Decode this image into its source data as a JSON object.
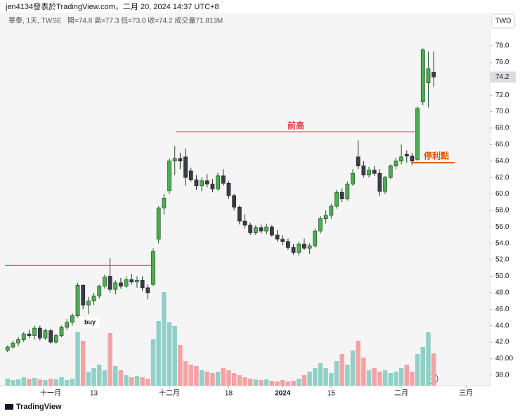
{
  "chart_data": {
    "type": "candlestick",
    "title": "jen4134發表於TradingView.com，二月 20, 2024 14:37 UTC+8",
    "symbol": "華泰, 1天, TWSE",
    "ohlc_legend": "開=74.8 高=77.3 低=73.0 收=74.2 成交量71.813M",
    "currency": "TWD",
    "footer": "TradingView",
    "up_color": "#4caf50",
    "down_color": "#3b3d45",
    "volume_up_color": "#8fd0c8",
    "volume_down_color": "#f2a3a3",
    "open": [
      41.0,
      41.4,
      41.9,
      42.3,
      43.0,
      42.8,
      43.7,
      42.5,
      43.4,
      42.0,
      42.8,
      43.8,
      44.4,
      45.2,
      48.9,
      46.5,
      47.0,
      47.6,
      48.8,
      50.0,
      48.4,
      49.2,
      48.8,
      49.6,
      49.3,
      49.5,
      48.6,
      49.0,
      54.5,
      58.3,
      60.4,
      64.0,
      64.3,
      64.5,
      62.8,
      61.7,
      61.0,
      61.6,
      61.2,
      60.6,
      62.2,
      61.3,
      59.8,
      58.4,
      56.7,
      56.2,
      55.3,
      55.9,
      55.5,
      56.0,
      55.0,
      54.5,
      54.2,
      53.5,
      52.9,
      53.9,
      53.4,
      53.7,
      55.5,
      57.0,
      57.4,
      58.5,
      60.2,
      59.4,
      61.2,
      64.5,
      63.4,
      62.3,
      62.9,
      62.5,
      60.3,
      62.0,
      63.4,
      64.0,
      64.8,
      64.6,
      64.2,
      71.2,
      73.5,
      74.8
    ],
    "high": [
      41.6,
      42.2,
      42.6,
      43.2,
      43.5,
      44.0,
      44.0,
      43.6,
      43.6,
      43.0,
      44.0,
      44.8,
      45.5,
      49.2,
      49.0,
      47.5,
      48.0,
      49.0,
      50.2,
      52.2,
      49.5,
      49.8,
      50.0,
      50.3,
      50.0,
      50.0,
      49.0,
      53.4,
      58.5,
      60.0,
      64.3,
      65.8,
      65.0,
      65.5,
      63.2,
      62.3,
      62.0,
      62.4,
      61.8,
      62.6,
      63.0,
      61.6,
      60.0,
      58.6,
      57.5,
      56.5,
      56.2,
      56.3,
      56.4,
      56.2,
      55.6,
      55.0,
      54.6,
      53.9,
      54.2,
      54.6,
      54.0,
      55.8,
      57.3,
      58.0,
      58.8,
      60.5,
      60.7,
      61.5,
      63.0,
      66.5,
      64.0,
      63.3,
      63.4,
      63.0,
      62.2,
      63.6,
      64.4,
      66.0,
      65.3,
      65.0,
      70.6,
      77.7,
      77.3,
      77.3
    ],
    "low": [
      40.8,
      41.2,
      41.5,
      42.0,
      42.5,
      42.3,
      42.2,
      42.3,
      41.8,
      41.8,
      42.6,
      43.5,
      44.0,
      45.0,
      46.0,
      45.4,
      46.5,
      47.3,
      48.5,
      48.0,
      47.8,
      48.5,
      48.6,
      49.0,
      48.6,
      48.2,
      47.2,
      48.8,
      54.0,
      57.5,
      60.0,
      62.3,
      63.0,
      61.0,
      61.5,
      60.5,
      60.3,
      60.8,
      60.2,
      60.4,
      61.0,
      59.4,
      58.0,
      56.3,
      55.8,
      55.0,
      55.0,
      55.2,
      55.1,
      54.8,
      54.2,
      53.8,
      53.2,
      52.6,
      52.5,
      53.2,
      52.7,
      53.5,
      55.2,
      56.4,
      57.0,
      58.2,
      59.0,
      59.2,
      61.0,
      63.0,
      62.0,
      62.0,
      62.2,
      59.8,
      60.0,
      61.8,
      63.0,
      63.6,
      63.8,
      63.5,
      64.0,
      70.8,
      70.5,
      73.0
    ],
    "close": [
      41.4,
      41.9,
      42.3,
      43.0,
      42.8,
      43.7,
      42.5,
      43.4,
      42.0,
      42.8,
      43.8,
      44.4,
      45.2,
      48.9,
      46.5,
      47.0,
      47.6,
      48.8,
      49.9,
      48.4,
      49.2,
      48.8,
      49.6,
      49.3,
      49.5,
      48.6,
      48.0,
      53.0,
      58.3,
      59.5,
      64.0,
      64.3,
      64.0,
      62.0,
      61.7,
      61.0,
      61.6,
      61.2,
      60.6,
      62.2,
      61.3,
      59.8,
      58.4,
      56.7,
      56.2,
      55.3,
      55.9,
      55.5,
      56.0,
      55.0,
      54.5,
      54.2,
      53.5,
      52.9,
      53.9,
      53.4,
      53.7,
      55.5,
      57.0,
      57.4,
      58.5,
      60.2,
      59.4,
      61.2,
      62.5,
      63.4,
      62.3,
      62.9,
      62.5,
      60.3,
      62.0,
      63.4,
      64.0,
      64.5,
      64.6,
      64.0,
      70.4,
      77.5,
      75.2,
      74.2
    ],
    "volume": [
      15.6,
      12.5,
      14.0,
      18.7,
      15.6,
      17.2,
      14.0,
      12.5,
      15.6,
      14.0,
      18.7,
      12.5,
      15.6,
      118.6,
      99.8,
      31.2,
      39.0,
      46.8,
      34.3,
      117.0,
      43.7,
      34.3,
      23.4,
      18.7,
      21.8,
      18.7,
      15.6,
      103.0,
      143.5,
      207.5,
      140.4,
      132.6,
      90.5,
      54.6,
      46.8,
      43.7,
      34.3,
      31.2,
      28.1,
      31.2,
      39.0,
      34.3,
      28.1,
      23.4,
      18.7,
      15.6,
      14.0,
      12.5,
      14.0,
      10.9,
      9.4,
      12.5,
      9.4,
      10.9,
      15.6,
      23.4,
      31.2,
      39.0,
      49.9,
      39.0,
      28.1,
      54.6,
      70.2,
      46.8,
      78.0,
      99.8,
      62.4,
      34.3,
      39.0,
      31.2,
      34.3,
      28.1,
      31.2,
      39.0,
      46.8,
      31.2,
      70.2,
      85.8,
      118.6,
      71.8
    ],
    "xticks": [
      {
        "value": 8,
        "label": "十一月"
      },
      {
        "value": 16,
        "label": "13"
      },
      {
        "value": 30,
        "label": "十二月"
      },
      {
        "value": 41,
        "label": "18"
      },
      {
        "value": 51,
        "label": "2024"
      },
      {
        "value": 60,
        "label": "15"
      },
      {
        "value": 73,
        "label": "二月"
      },
      {
        "value": 85,
        "label": "三月"
      }
    ],
    "xlim": [
      -1.4,
      89.4
    ],
    "ylim": [
      36.7,
      81.85
    ],
    "yticks": [
      {
        "value": 38,
        "label": "38.0"
      },
      {
        "value": 40,
        "label": "40.00"
      },
      {
        "value": 42,
        "label": "42.0"
      },
      {
        "value": 44,
        "label": "44.0"
      },
      {
        "value": 46,
        "label": "46.0"
      },
      {
        "value": 48,
        "label": "48.0"
      },
      {
        "value": 50,
        "label": "50.0"
      },
      {
        "value": 52,
        "label": "52.0"
      },
      {
        "value": 54,
        "label": "54.0"
      },
      {
        "value": 56,
        "label": "56.0"
      },
      {
        "value": 58,
        "label": "58.0"
      },
      {
        "value": 60,
        "label": "60.0"
      },
      {
        "value": 62,
        "label": "62.0"
      },
      {
        "value": 64,
        "label": "64.0"
      },
      {
        "value": 66,
        "label": "66.0"
      },
      {
        "value": 68,
        "label": "68.0"
      },
      {
        "value": 70,
        "label": "70.0"
      },
      {
        "value": 72,
        "label": "72.0"
      },
      {
        "value": 74,
        "label": "74.0"
      },
      {
        "value": 76,
        "label": "76.0"
      },
      {
        "value": 78,
        "label": "78.0"
      }
    ],
    "annotations": [
      {
        "text": "前高",
        "level": 67.55,
        "color": "#f23645"
      },
      {
        "text": "停利點",
        "level": 63.8,
        "color": "#e65100"
      },
      {
        "level": 51.3,
        "color": "#f23645"
      },
      {
        "text": "buy"
      }
    ]
  }
}
